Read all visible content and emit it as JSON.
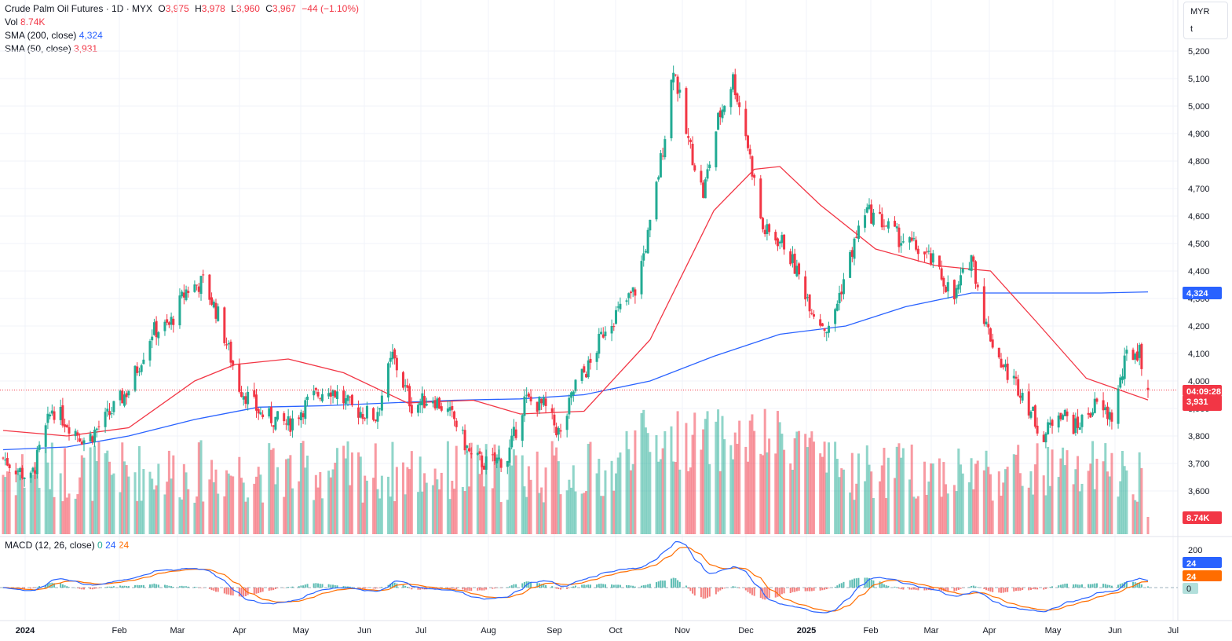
{
  "header": {
    "symbol_line": "Crude Palm Oil Futures · 1D · MYX",
    "open_label": "O",
    "open_value": "3,975",
    "high_label": "H",
    "high_value": "3,978",
    "low_label": "L",
    "low_value": "3,960",
    "close_label": "C",
    "close_value": "3,967",
    "change": "−44 (−1.10%)",
    "vol_label": "Vol",
    "vol_value": "8.74K",
    "sma200_label": "SMA (200, close)",
    "sma200_value": "4,324",
    "sma50_label": "SMA (50, close)",
    "sma50_value": "3,931",
    "macd_label": "MACD (12, 26, close)",
    "macd_hist": "0",
    "macd_line": "24",
    "macd_signal": "24"
  },
  "currency": {
    "code": "MYR",
    "unit": "t"
  },
  "badges": {
    "sma200": "4,324",
    "countdown": "04:09:28",
    "price": "3,967",
    "sma50": "3,931",
    "volume": "8.74K",
    "macd_top": "24",
    "macd_mid": "24",
    "macd_zero": "0",
    "macd_scale": "200"
  },
  "colors": {
    "up": "#22ab94",
    "down": "#f23645",
    "sma200": "#2962ff",
    "sma50": "#f23645",
    "macd": "#2962ff",
    "signal": "#ff6d00",
    "grid": "#f0f3fa"
  },
  "chart_data": {
    "type": "candlestick",
    "title": "Crude Palm Oil Futures · 1D · MYX",
    "currency": "MYR",
    "y_ticks": [
      5200,
      5100,
      5000,
      4900,
      4800,
      4700,
      4600,
      4500,
      4400,
      4300,
      4200,
      4100,
      4000,
      3900,
      3800,
      3700,
      3600
    ],
    "y_tick_labels": [
      "5,200",
      "5,100",
      "5,000",
      "4,900",
      "4,800",
      "4,700",
      "4,600",
      "4,500",
      "4,400",
      "4,300",
      "4,200",
      "4,100",
      "4,000",
      "3,900",
      "3,800",
      "3,700",
      "3,600"
    ],
    "x_labels": [
      "2024",
      "Feb",
      "Mar",
      "Apr",
      "May",
      "Jun",
      "Jul",
      "Aug",
      "Sep",
      "Oct",
      "Nov",
      "Dec",
      "2025",
      "Feb",
      "Mar",
      "Apr",
      "May",
      "Jun",
      "Jul"
    ],
    "x_labels_bold": [
      true,
      false,
      false,
      false,
      false,
      false,
      false,
      false,
      false,
      false,
      false,
      false,
      true,
      false,
      false,
      false,
      false,
      false,
      false
    ],
    "ylim": [
      3500,
      5280
    ],
    "close_path": [
      [
        "2024-01-02",
        3720
      ],
      [
        "2024-01-15",
        3640
      ],
      [
        "2024-01-25",
        3900
      ],
      [
        "2024-02-01",
        3850
      ],
      [
        "2024-02-10",
        3780
      ],
      [
        "2024-02-20",
        3870
      ],
      [
        "2024-03-01",
        3970
      ],
      [
        "2024-03-12",
        4180
      ],
      [
        "2024-03-20",
        4200
      ],
      [
        "2024-03-28",
        4330
      ],
      [
        "2024-04-05",
        4360
      ],
      [
        "2024-04-12",
        4240
      ],
      [
        "2024-04-22",
        3980
      ],
      [
        "2024-05-02",
        3880
      ],
      [
        "2024-05-15",
        3840
      ],
      [
        "2024-05-25",
        3930
      ],
      [
        "2024-06-03",
        3980
      ],
      [
        "2024-06-14",
        3900
      ],
      [
        "2024-06-25",
        3870
      ],
      [
        "2024-07-03",
        4090
      ],
      [
        "2024-07-12",
        3910
      ],
      [
        "2024-07-22",
        3940
      ],
      [
        "2024-08-01",
        3860
      ],
      [
        "2024-08-09",
        3720
      ],
      [
        "2024-08-16",
        3700
      ],
      [
        "2024-08-26",
        3720
      ],
      [
        "2024-09-03",
        3930
      ],
      [
        "2024-09-12",
        3910
      ],
      [
        "2024-09-20",
        3800
      ],
      [
        "2024-09-27",
        3990
      ],
      [
        "2024-10-04",
        4060
      ],
      [
        "2024-10-11",
        4200
      ],
      [
        "2024-10-18",
        4260
      ],
      [
        "2024-10-25",
        4330
      ],
      [
        "2024-11-01",
        4560
      ],
      [
        "2024-11-08",
        4900
      ],
      [
        "2024-11-12",
        5150
      ],
      [
        "2024-11-18",
        4900
      ],
      [
        "2024-11-26",
        4680
      ],
      [
        "2024-12-03",
        4950
      ],
      [
        "2024-12-10",
        5100
      ],
      [
        "2024-12-16",
        4900
      ],
      [
        "2024-12-24",
        4550
      ],
      [
        "2025-01-03",
        4500
      ],
      [
        "2025-01-10",
        4380
      ],
      [
        "2025-01-17",
        4250
      ],
      [
        "2025-01-24",
        4180
      ],
      [
        "2025-02-03",
        4450
      ],
      [
        "2025-02-10",
        4620
      ],
      [
        "2025-02-18",
        4580
      ],
      [
        "2025-02-26",
        4520
      ],
      [
        "2025-03-07",
        4480
      ],
      [
        "2025-03-14",
        4430
      ],
      [
        "2025-03-24",
        4300
      ],
      [
        "2025-04-01",
        4460
      ],
      [
        "2025-04-08",
        4200
      ],
      [
        "2025-04-16",
        4050
      ],
      [
        "2025-04-25",
        3960
      ],
      [
        "2025-05-05",
        3790
      ],
      [
        "2025-05-12",
        3900
      ],
      [
        "2025-05-20",
        3830
      ],
      [
        "2025-05-29",
        3910
      ],
      [
        "2025-06-06",
        3870
      ],
      [
        "2025-06-13",
        4090
      ],
      [
        "2025-06-19",
        4110
      ],
      [
        "2025-06-23",
        3967
      ]
    ],
    "sma200": [
      [
        "2024-01-02",
        3750
      ],
      [
        "2024-02-01",
        3760
      ],
      [
        "2024-03-01",
        3800
      ],
      [
        "2024-04-01",
        3860
      ],
      [
        "2024-05-01",
        3905
      ],
      [
        "2024-06-01",
        3910
      ],
      [
        "2024-07-01",
        3920
      ],
      [
        "2024-08-01",
        3930
      ],
      [
        "2024-09-01",
        3935
      ],
      [
        "2024-10-01",
        3950
      ],
      [
        "2024-11-01",
        4000
      ],
      [
        "2024-12-01",
        4090
      ],
      [
        "2025-01-01",
        4170
      ],
      [
        "2025-02-01",
        4200
      ],
      [
        "2025-03-01",
        4270
      ],
      [
        "2025-04-01",
        4320
      ],
      [
        "2025-05-01",
        4320
      ],
      [
        "2025-06-01",
        4320
      ],
      [
        "2025-06-23",
        4324
      ]
    ],
    "sma50": [
      [
        "2024-01-02",
        3820
      ],
      [
        "2024-02-01",
        3800
      ],
      [
        "2024-03-01",
        3830
      ],
      [
        "2024-04-01",
        4000
      ],
      [
        "2024-04-20",
        4060
      ],
      [
        "2024-05-15",
        4080
      ],
      [
        "2024-06-10",
        4030
      ],
      [
        "2024-07-10",
        3920
      ],
      [
        "2024-08-10",
        3930
      ],
      [
        "2024-09-01",
        3880
      ],
      [
        "2024-10-01",
        3890
      ],
      [
        "2024-11-01",
        4150
      ],
      [
        "2024-12-01",
        4620
      ],
      [
        "2024-12-20",
        4770
      ],
      [
        "2025-01-01",
        4780
      ],
      [
        "2025-01-20",
        4640
      ],
      [
        "2025-02-15",
        4480
      ],
      [
        "2025-03-15",
        4420
      ],
      [
        "2025-04-10",
        4400
      ],
      [
        "2025-05-01",
        4220
      ],
      [
        "2025-05-25",
        4010
      ],
      [
        "2025-06-23",
        3931
      ]
    ],
    "volume_label": "Vol",
    "macd": {
      "scale_tick": 200,
      "zero": 0,
      "macd_line_last": 24,
      "signal_last": 24,
      "hist_last": 0
    }
  }
}
